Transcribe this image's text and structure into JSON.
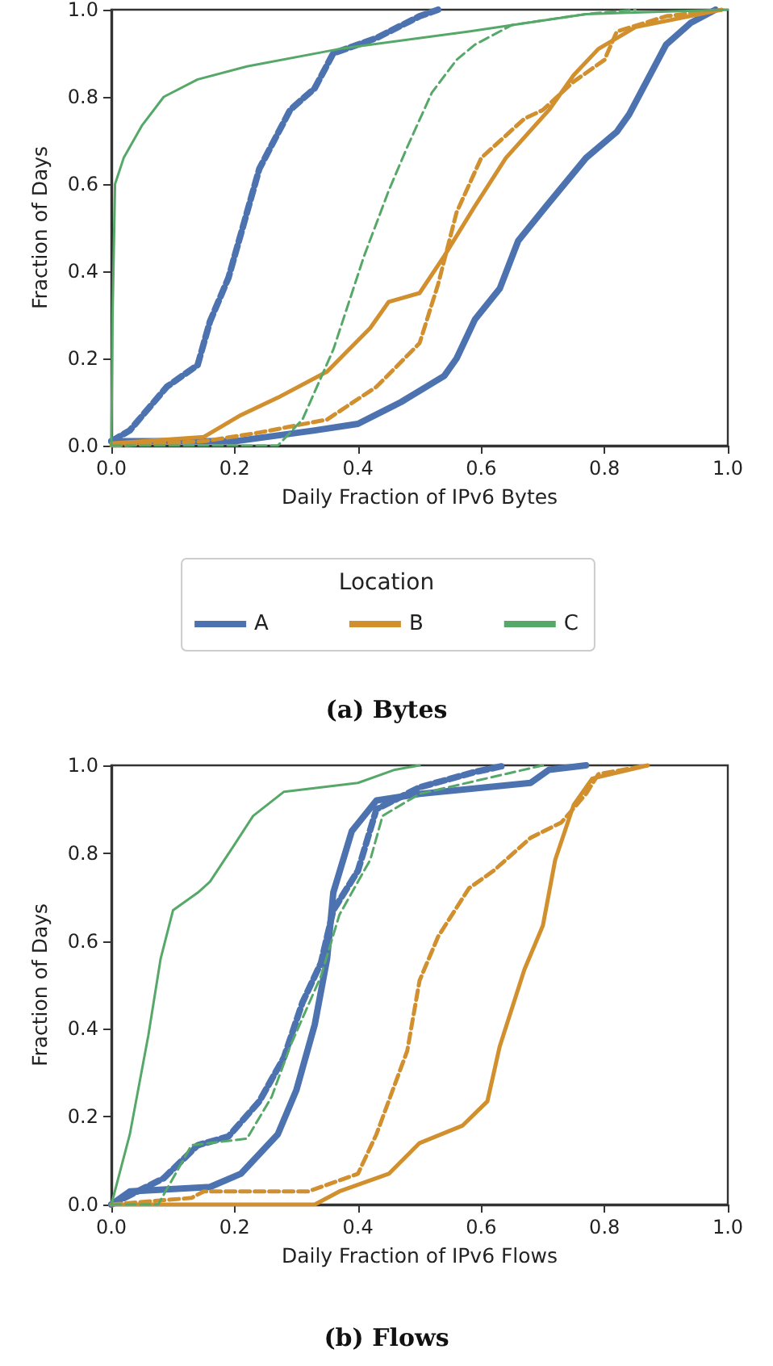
{
  "chart_data": [
    {
      "type": "line",
      "title": "(a) Bytes",
      "xlabel": "Daily Fraction of IPv6 Bytes",
      "ylabel": "Fraction of Days",
      "legend_title": "Location",
      "legend": "bottom",
      "grid": false,
      "marker": "none",
      "xlim": [
        0,
        1
      ],
      "ylim": [
        0,
        1
      ],
      "xticks": [
        {
          "value": 0,
          "label": "0.0"
        },
        {
          "value": 0.2,
          "label": "0.2"
        },
        {
          "value": 0.4,
          "label": "0.4"
        },
        {
          "value": 0.6,
          "label": "0.6"
        },
        {
          "value": 0.8,
          "label": "0.8"
        },
        {
          "value": 1,
          "label": "1.0"
        }
      ],
      "yticks": [
        {
          "value": 0,
          "label": "0.0"
        },
        {
          "value": 0.2,
          "label": "0.2"
        },
        {
          "value": 0.4,
          "label": "0.4"
        },
        {
          "value": 0.6,
          "label": "0.6"
        },
        {
          "value": 0.8,
          "label": "0.8"
        },
        {
          "value": 1,
          "label": "1.0"
        }
      ],
      "series": [
        {
          "name": "A",
          "color": "#4c72b0",
          "line_style": "solid",
          "x": [
            0,
            0.2,
            0.33,
            0.4,
            0.47,
            0.54,
            0.56,
            0.59,
            0.63,
            0.66,
            0.7,
            0.77,
            0.82,
            0.84,
            0.87,
            0.9,
            0.94,
            0.98
          ],
          "values": [
            0.01,
            0.01,
            0.035,
            0.05,
            0.1,
            0.16,
            0.2,
            0.29,
            0.36,
            0.47,
            0.54,
            0.66,
            0.72,
            0.76,
            0.84,
            0.92,
            0.97,
            1
          ]
        },
        {
          "color": "#4c72b0",
          "line_style": "dashed",
          "x": [
            0,
            0.03,
            0.09,
            0.14,
            0.16,
            0.19,
            0.22,
            0.24,
            0.29,
            0.33,
            0.36,
            0.43,
            0.5,
            0.53
          ],
          "values": [
            0.01,
            0.035,
            0.135,
            0.185,
            0.285,
            0.385,
            0.535,
            0.635,
            0.77,
            0.82,
            0.9,
            0.935,
            0.985,
            1
          ]
        },
        {
          "name": "B",
          "color": "#d18f2e",
          "line_style": "solid",
          "x": [
            0,
            0.15,
            0.21,
            0.27,
            0.35,
            0.42,
            0.45,
            0.5,
            0.54,
            0.59,
            0.64,
            0.71,
            0.75,
            0.79,
            0.85,
            0.99
          ],
          "values": [
            0.005,
            0.02,
            0.07,
            0.11,
            0.17,
            0.27,
            0.33,
            0.35,
            0.435,
            0.55,
            0.66,
            0.77,
            0.85,
            0.91,
            0.96,
            1
          ]
        },
        {
          "color": "#d18f2e",
          "line_style": "dashed",
          "x": [
            0,
            0.15,
            0.24,
            0.35,
            0.43,
            0.5,
            0.53,
            0.56,
            0.6,
            0.67,
            0.7,
            0.75,
            0.8,
            0.82,
            0.9,
            0.99
          ],
          "values": [
            0,
            0.01,
            0.03,
            0.06,
            0.135,
            0.235,
            0.37,
            0.535,
            0.66,
            0.75,
            0.77,
            0.835,
            0.885,
            0.95,
            0.985,
            1
          ]
        },
        {
          "name": "C",
          "color": "#55a868",
          "line_style": "solid",
          "x": [
            0,
            0.002,
            0.006,
            0.02,
            0.05,
            0.085,
            0.14,
            0.22,
            0.37,
            0.58,
            0.77,
            1
          ],
          "values": [
            0,
            0.3,
            0.6,
            0.66,
            0.735,
            0.8,
            0.84,
            0.87,
            0.91,
            0.95,
            0.99,
            1
          ]
        },
        {
          "color": "#55a868",
          "line_style": "dashed",
          "x": [
            0,
            0.27,
            0.31,
            0.36,
            0.41,
            0.45,
            0.48,
            0.52,
            0.56,
            0.59,
            0.65,
            0.77,
            0.85
          ],
          "values": [
            0,
            0,
            0.06,
            0.22,
            0.435,
            0.585,
            0.685,
            0.81,
            0.885,
            0.92,
            0.965,
            0.99,
            1
          ]
        }
      ]
    },
    {
      "type": "line",
      "title": "(b) Flows",
      "xlabel": "Daily Fraction of IPv6 Flows",
      "ylabel": "Fraction of Days",
      "grid": false,
      "marker": "none",
      "xlim": [
        0,
        1
      ],
      "ylim": [
        0,
        1
      ],
      "xticks": [
        {
          "value": 0,
          "label": "0.0"
        },
        {
          "value": 0.2,
          "label": "0.2"
        },
        {
          "value": 0.4,
          "label": "0.4"
        },
        {
          "value": 0.6,
          "label": "0.6"
        },
        {
          "value": 0.8,
          "label": "0.8"
        },
        {
          "value": 1,
          "label": "1.0"
        }
      ],
      "yticks": [
        {
          "value": 0,
          "label": "0.0"
        },
        {
          "value": 0.2,
          "label": "0.2"
        },
        {
          "value": 0.4,
          "label": "0.4"
        },
        {
          "value": 0.6,
          "label": "0.6"
        },
        {
          "value": 0.8,
          "label": "0.8"
        },
        {
          "value": 1,
          "label": "1.0"
        }
      ],
      "series": [
        {
          "color": "#4c72b0",
          "line_style": "solid",
          "x": [
            0,
            0.03,
            0.16,
            0.21,
            0.27,
            0.3,
            0.33,
            0.35,
            0.36,
            0.39,
            0.43,
            0.5,
            0.68,
            0.71,
            0.77
          ],
          "values": [
            0,
            0.03,
            0.04,
            0.07,
            0.16,
            0.26,
            0.41,
            0.56,
            0.71,
            0.85,
            0.92,
            0.935,
            0.96,
            0.99,
            1
          ]
        },
        {
          "color": "#4c72b0",
          "line_style": "dashed",
          "x": [
            0,
            0.085,
            0.14,
            0.19,
            0.24,
            0.28,
            0.31,
            0.34,
            0.36,
            0.4,
            0.43,
            0.5,
            0.59,
            0.64
          ],
          "values": [
            0,
            0.06,
            0.135,
            0.155,
            0.235,
            0.335,
            0.46,
            0.55,
            0.67,
            0.76,
            0.9,
            0.95,
            0.985,
            1
          ]
        },
        {
          "color": "#d18f2e",
          "line_style": "solid",
          "x": [
            0,
            0.33,
            0.37,
            0.45,
            0.5,
            0.57,
            0.61,
            0.63,
            0.67,
            0.7,
            0.72,
            0.75,
            0.78,
            0.87
          ],
          "values": [
            0,
            0,
            0.03,
            0.07,
            0.14,
            0.18,
            0.235,
            0.36,
            0.535,
            0.635,
            0.785,
            0.91,
            0.97,
            1
          ]
        },
        {
          "color": "#d18f2e",
          "line_style": "dashed",
          "x": [
            0,
            0.13,
            0.15,
            0.32,
            0.4,
            0.43,
            0.48,
            0.5,
            0.53,
            0.58,
            0.62,
            0.68,
            0.73,
            0.77,
            0.79,
            0.87
          ],
          "values": [
            0,
            0.015,
            0.03,
            0.03,
            0.07,
            0.16,
            0.35,
            0.51,
            0.61,
            0.72,
            0.76,
            0.835,
            0.87,
            0.935,
            0.98,
            1
          ]
        },
        {
          "color": "#55a868",
          "line_style": "solid",
          "x": [
            0,
            0.03,
            0.06,
            0.08,
            0.1,
            0.14,
            0.16,
            0.2,
            0.23,
            0.28,
            0.4,
            0.46,
            0.5
          ],
          "values": [
            0,
            0.16,
            0.385,
            0.56,
            0.67,
            0.71,
            0.735,
            0.82,
            0.885,
            0.94,
            0.96,
            0.99,
            1
          ]
        },
        {
          "color": "#55a868",
          "line_style": "dashed",
          "x": [
            0,
            0.076,
            0.13,
            0.22,
            0.26,
            0.29,
            0.34,
            0.37,
            0.42,
            0.44,
            0.5,
            0.7
          ],
          "values": [
            0,
            0,
            0.135,
            0.15,
            0.245,
            0.36,
            0.52,
            0.66,
            0.785,
            0.885,
            0.935,
            1
          ]
        }
      ]
    }
  ]
}
